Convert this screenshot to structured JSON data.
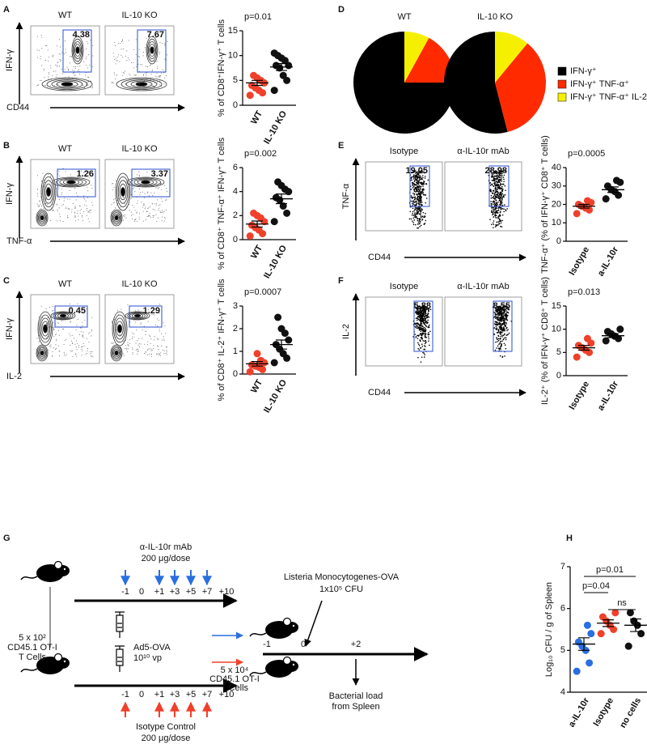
{
  "panel_labels": [
    "A",
    "B",
    "C",
    "D",
    "E",
    "F",
    "G",
    "H"
  ],
  "flow": [
    {
      "ylabel": "IFN-γ",
      "xlabel": "CD44",
      "plots": [
        {
          "title": "WT",
          "gate": 4.38
        },
        {
          "title": "IL-10 KO",
          "gate": 7.67
        }
      ]
    },
    {
      "ylabel": "IFN-γ",
      "xlabel": "TNF-α",
      "plots": [
        {
          "title": "WT",
          "gate": 1.26
        },
        {
          "title": "IL-10 KO",
          "gate": 3.37
        }
      ]
    },
    {
      "ylabel": "IFN-γ",
      "xlabel": "IL-2",
      "plots": [
        {
          "title": "WT",
          "gate": 0.45
        },
        {
          "title": "IL-10 KO",
          "gate": 1.29
        }
      ]
    },
    {
      "ylabel": "TNF-α",
      "xlabel": "CD44",
      "plots": [
        {
          "title": "Isotype",
          "gate": 19.05
        },
        {
          "title": "α-IL-10r mAb",
          "gate": 28.98
        }
      ]
    },
    {
      "ylabel": "IL-2",
      "xlabel": "CD44",
      "plots": [
        {
          "title": "Isotype",
          "gate": 5.88
        },
        {
          "title": "α-IL-10r mAb",
          "gate": 8.55
        }
      ]
    }
  ],
  "chart_data": [
    {
      "type": "dot",
      "ylabel": "% of CD8⁺IFN-γ⁺ T cells",
      "annotations": [
        "p=0.01"
      ],
      "categories": [
        "WT",
        "IL-10 KO"
      ],
      "colors": [
        "#f0402a",
        "#111111"
      ],
      "values": [
        [
          2,
          2.5,
          3,
          3.5,
          4,
          4.5,
          5,
          5.5,
          6
        ],
        [
          3,
          5,
          6,
          7.5,
          8,
          8,
          9,
          9.5,
          10,
          10.5
        ]
      ],
      "means": [
        4.5,
        7.7
      ],
      "errors": [
        0.5,
        0.7
      ],
      "ylim": [
        0,
        15
      ],
      "yticks": [
        0,
        5,
        10,
        15
      ]
    },
    {
      "type": "dot",
      "ylabel": "% of CD8⁺ TNF-α⁺ IFN-γ⁺ T cells",
      "annotations": [
        "p=0.002"
      ],
      "categories": [
        "WT",
        "IL-10 KO"
      ],
      "colors": [
        "#f0402a",
        "#111111"
      ],
      "values": [
        [
          0.3,
          0.5,
          0.8,
          1,
          1.2,
          1.5,
          1.8,
          2,
          2.2
        ],
        [
          1.5,
          2.2,
          2.8,
          3.3,
          3.5,
          4,
          4.2,
          4.5,
          4.8
        ]
      ],
      "means": [
        1.3,
        3.4
      ],
      "errors": [
        0.25,
        0.4
      ],
      "ylim": [
        0,
        6
      ],
      "yticks": [
        0,
        2,
        4,
        6
      ]
    },
    {
      "type": "dot",
      "ylabel": "% of CD8⁺ IL-2⁺ IFN-γ⁺ T cells",
      "annotations": [
        "p=0.0007"
      ],
      "categories": [
        "WT",
        "IL-10 KO"
      ],
      "colors": [
        "#f0402a",
        "#111111"
      ],
      "values": [
        [
          0.1,
          0.2,
          0.3,
          0.35,
          0.4,
          0.5,
          0.6,
          0.9
        ],
        [
          0.5,
          0.7,
          0.9,
          1.1,
          1.3,
          1.5,
          1.8,
          2,
          2.5
        ]
      ],
      "means": [
        0.45,
        1.3
      ],
      "errors": [
        0.1,
        0.2
      ],
      "ylim": [
        0,
        3
      ],
      "yticks": [
        0,
        1,
        2,
        3
      ]
    },
    {
      "type": "pie",
      "categories": [
        "IFN-γ⁺",
        "IFN-γ⁺ TNF-α⁺",
        "IFN-γ⁺ TNF-α⁺ IL-2⁺"
      ],
      "colors": [
        "#000000",
        "#ff2a00",
        "#f5f000"
      ],
      "series": [
        {
          "name": "WT",
          "values": [
            75,
            17,
            8
          ]
        },
        {
          "name": "IL-10 KO",
          "values": [
            54,
            35,
            11
          ]
        }
      ]
    },
    {
      "type": "dot",
      "ylabel": "TNF-α⁺ (% of IFN-γ⁺ CD8⁺ T cells)",
      "annotations": [
        "p=0.0005"
      ],
      "categories": [
        "Isotype",
        "a-IL-10r"
      ],
      "colors": [
        "#f0402a",
        "#111111"
      ],
      "values": [
        [
          15,
          17,
          18,
          19,
          20,
          21,
          22
        ],
        [
          23,
          25,
          27,
          28,
          30,
          32,
          33
        ]
      ],
      "means": [
        19,
        28
      ],
      "errors": [
        1,
        1.5
      ],
      "ylim": [
        0,
        40
      ],
      "yticks": [
        0,
        10,
        20,
        30,
        40
      ]
    },
    {
      "type": "dot",
      "ylabel": "IL-2⁺ (% of IFN-γ⁺ CD8⁺ T cells)",
      "annotations": [
        "p=0.013"
      ],
      "categories": [
        "Isotype",
        "a-IL-10r"
      ],
      "colors": [
        "#f0402a",
        "#111111"
      ],
      "values": [
        [
          4,
          5,
          5.5,
          6,
          6.5,
          7,
          8
        ],
        [
          7.5,
          8,
          8.5,
          9,
          9.5,
          10
        ]
      ],
      "means": [
        6,
        8.6
      ],
      "errors": [
        0.5,
        0.4
      ],
      "ylim": [
        0,
        15
      ],
      "yticks": [
        0,
        5,
        10,
        15
      ]
    },
    {
      "type": "dot",
      "ylabel": "Log₁₀ CFU / g of Spleen",
      "annotations": [
        "p=0.01",
        "p=0.04",
        "ns"
      ],
      "categories": [
        "a-IL-10r",
        "Isotype",
        "no cells"
      ],
      "colors": [
        "#2a6fe0",
        "#f0402a",
        "#111111"
      ],
      "values": [
        [
          4.5,
          4.7,
          5,
          5.1,
          5.2,
          5.4,
          5.6
        ],
        [
          5.4,
          5.5,
          5.6,
          5.7,
          5.8,
          5.9
        ],
        [
          5.1,
          5.4,
          5.6,
          5.7,
          5.9
        ]
      ],
      "means": [
        5.15,
        5.65,
        5.6
      ],
      "errors": [
        0.15,
        0.08,
        0.15
      ],
      "ylim": [
        4,
        7
      ],
      "yticks": [
        4,
        5,
        6,
        7
      ]
    }
  ],
  "diagram": {
    "top_treatment": [
      "α-IL-10r mAb",
      "200 μg/dose"
    ],
    "top_days": [
      "-1",
      "0",
      "+1",
      "+3",
      "+5",
      "+7",
      "+10"
    ],
    "donor_cells": [
      "5 x 10²",
      "CD45.1 OT-I",
      "T Cells"
    ],
    "vaccine": [
      "Ad5-OVA",
      "10¹⁰ vp"
    ],
    "bottom_days": [
      "-1",
      "0",
      "+1",
      "+3",
      "+5",
      "+7",
      "+10"
    ],
    "bottom_treatment": [
      "Isotype Control",
      "200 μg/dose"
    ],
    "transfer_cells": [
      "5 x 10⁴",
      "CD45.1 OT-I",
      "T Cells"
    ],
    "infection": [
      "Listeria Monocytogenes-OVA",
      "1x10⁵ CFU"
    ],
    "challenge_days": [
      "-1",
      "0",
      "+2"
    ],
    "readout": [
      "Bacterial load",
      "from Spleen"
    ]
  }
}
